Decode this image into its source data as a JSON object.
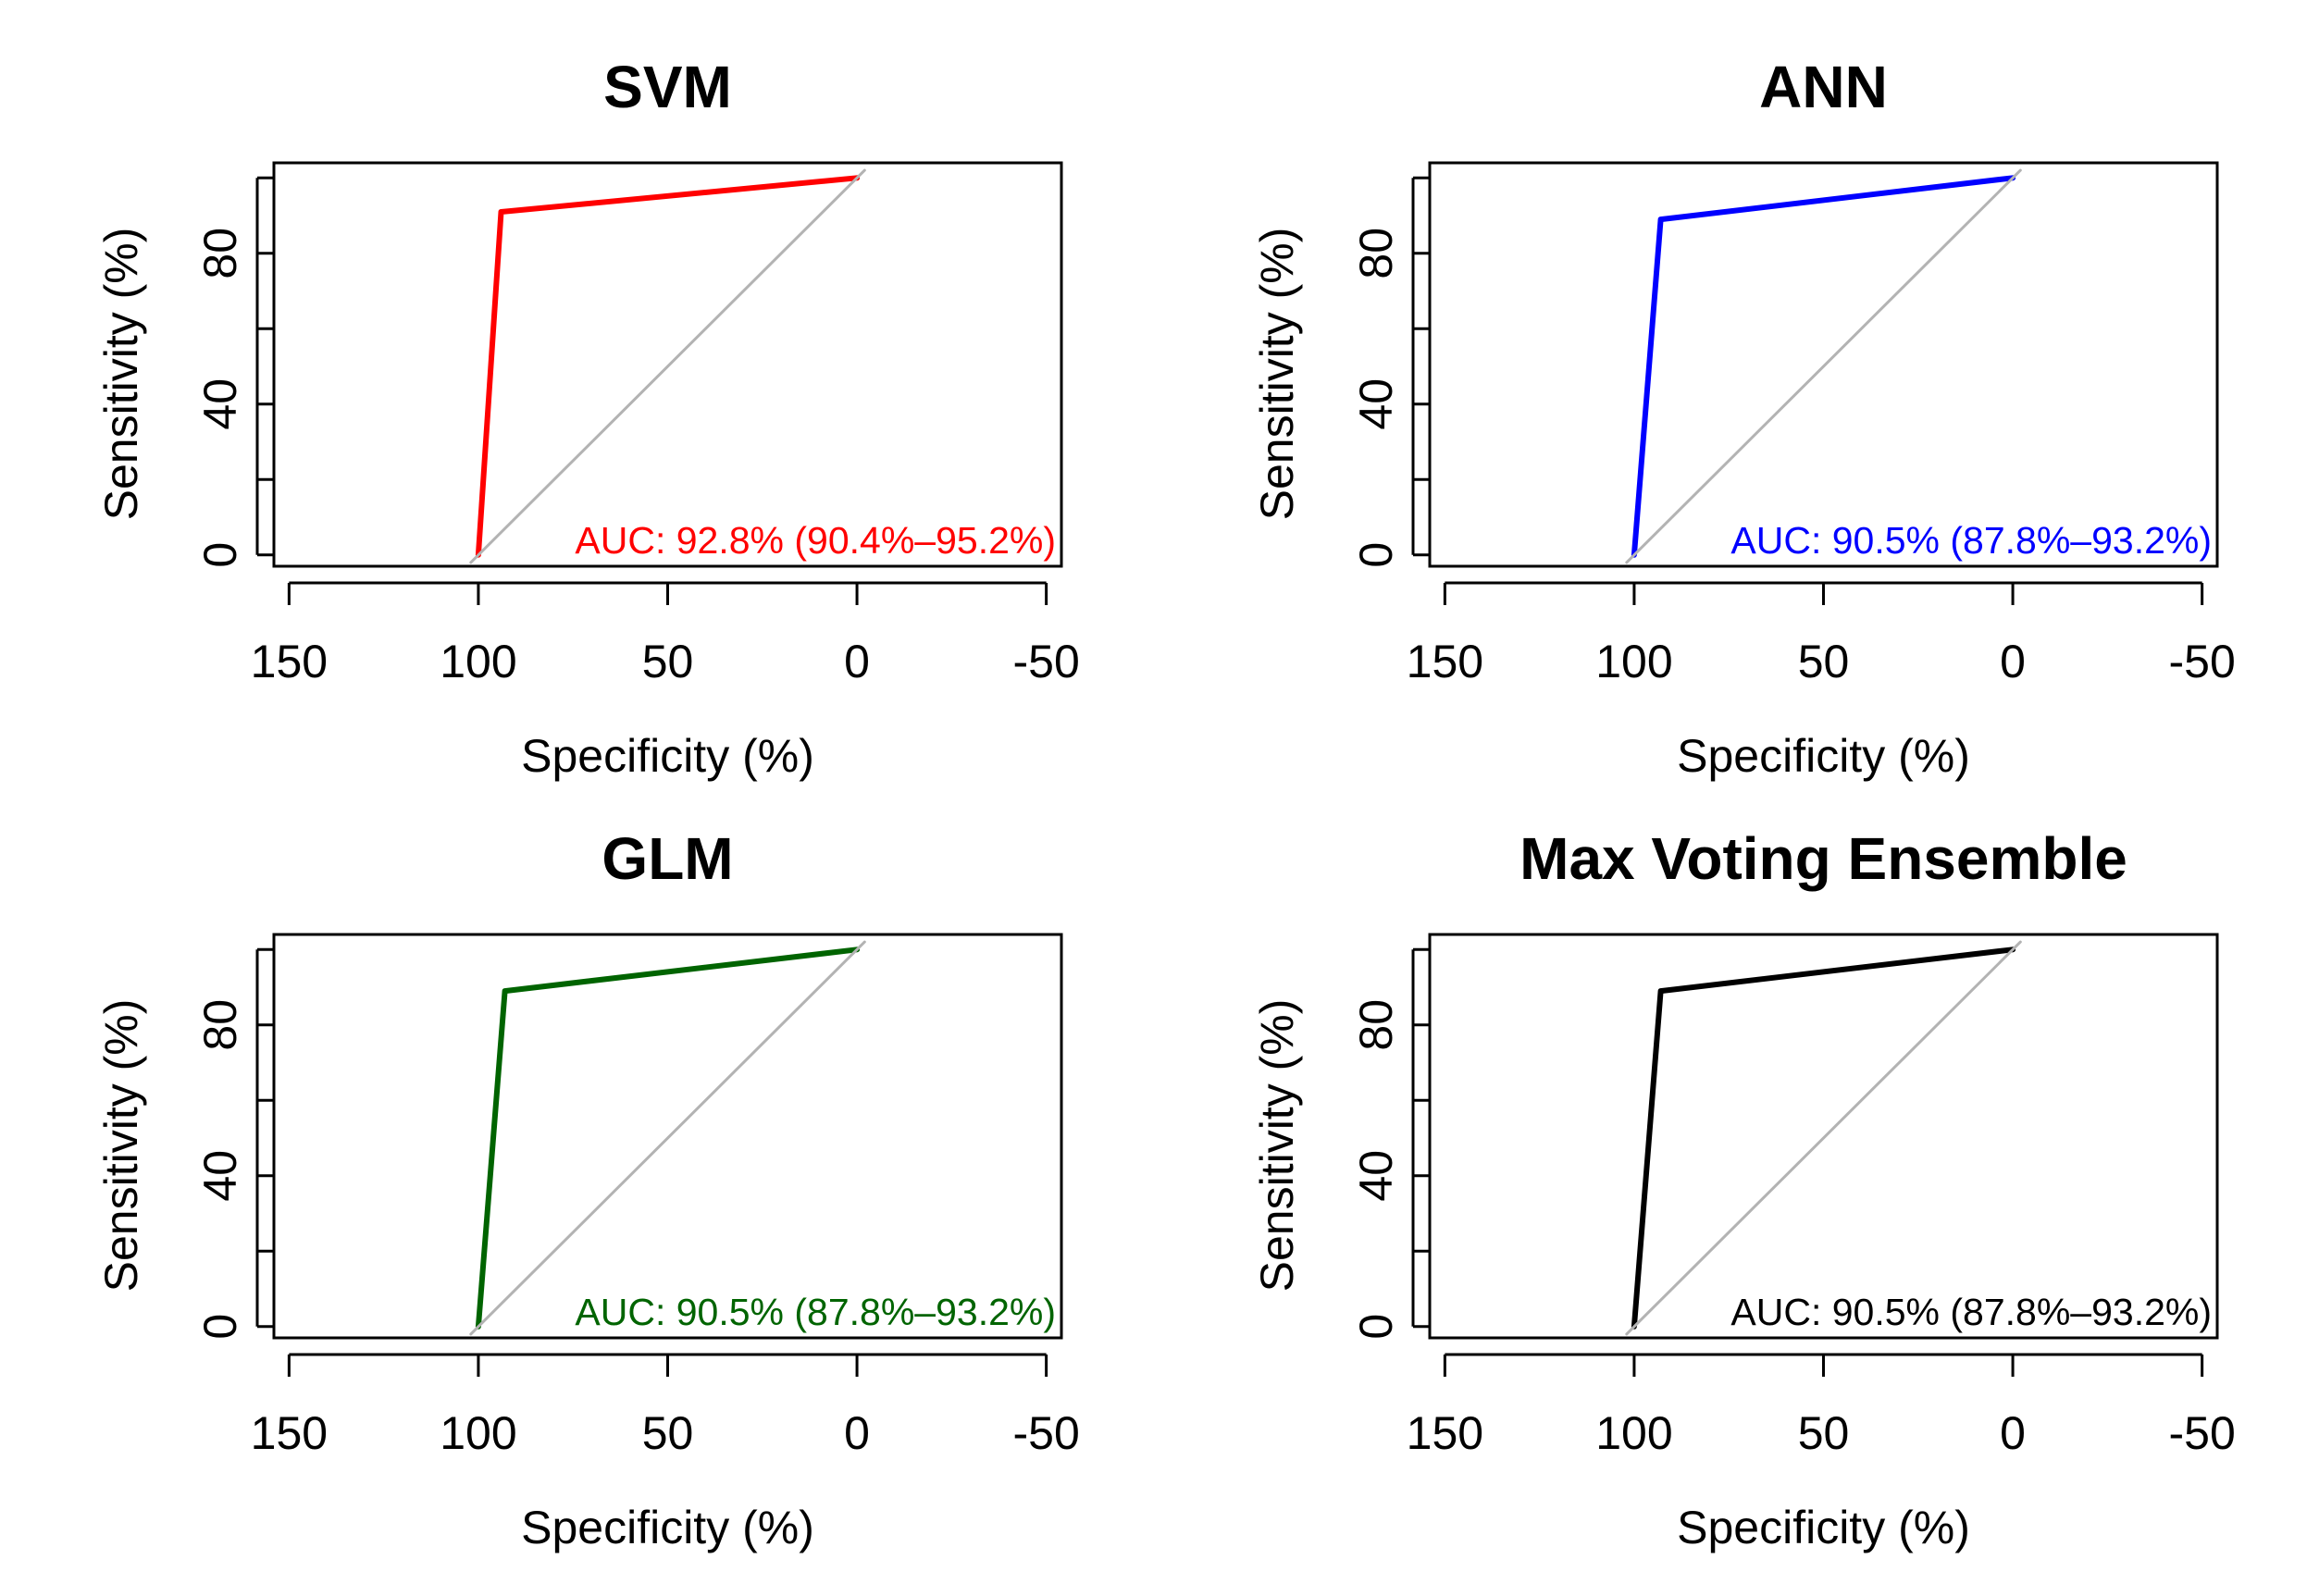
{
  "chart_data": [
    {
      "type": "line",
      "title": "SVM",
      "xlabel": "Specificity (%)",
      "ylabel": "Sensitivity (%)",
      "xlim": [
        154,
        -54
      ],
      "ylim": [
        -3,
        104
      ],
      "x_ticks": [
        150,
        100,
        50,
        0,
        -50
      ],
      "x_tick_labels": [
        "150",
        "100",
        "50",
        "0",
        "-50"
      ],
      "y_ticks": [
        0,
        20,
        40,
        60,
        80,
        100
      ],
      "y_tick_labels": [
        "0",
        "",
        "40",
        "",
        "80",
        ""
      ],
      "color": "#ff0000",
      "series": [
        {
          "name": "ROC",
          "x": [
            100,
            100,
            94,
            0
          ],
          "y": [
            0,
            0,
            91,
            100
          ]
        },
        {
          "name": "reference",
          "x": [
            102,
            -2
          ],
          "y": [
            -2,
            102
          ]
        }
      ],
      "annotation": "AUC: 92.8% (90.4%–95.2%)"
    },
    {
      "type": "line",
      "title": "ANN",
      "xlabel": "Specificity (%)",
      "ylabel": "Sensitivity (%)",
      "xlim": [
        154,
        -54
      ],
      "ylim": [
        -3,
        104
      ],
      "x_ticks": [
        150,
        100,
        50,
        0,
        -50
      ],
      "x_tick_labels": [
        "150",
        "100",
        "50",
        "0",
        "-50"
      ],
      "y_ticks": [
        0,
        20,
        40,
        60,
        80,
        100
      ],
      "y_tick_labels": [
        "0",
        "",
        "40",
        "",
        "80",
        ""
      ],
      "color": "#0000ff",
      "series": [
        {
          "name": "ROC",
          "x": [
            100,
            100,
            93,
            0
          ],
          "y": [
            0,
            0,
            89,
            100
          ]
        },
        {
          "name": "reference",
          "x": [
            102,
            -2
          ],
          "y": [
            -2,
            102
          ]
        }
      ],
      "annotation": "AUC: 90.5% (87.8%–93.2%)"
    },
    {
      "type": "line",
      "title": "GLM",
      "xlabel": "Specificity (%)",
      "ylabel": "Sensitivity (%)",
      "xlim": [
        154,
        -54
      ],
      "ylim": [
        -3,
        104
      ],
      "x_ticks": [
        150,
        100,
        50,
        0,
        -50
      ],
      "x_tick_labels": [
        "150",
        "100",
        "50",
        "0",
        "-50"
      ],
      "y_ticks": [
        0,
        20,
        40,
        60,
        80,
        100
      ],
      "y_tick_labels": [
        "0",
        "",
        "40",
        "",
        "80",
        ""
      ],
      "color": "#006400",
      "series": [
        {
          "name": "ROC",
          "x": [
            100,
            100,
            93,
            0
          ],
          "y": [
            0,
            0,
            89,
            100
          ]
        },
        {
          "name": "reference",
          "x": [
            102,
            -2
          ],
          "y": [
            -2,
            102
          ]
        }
      ],
      "annotation": "AUC: 90.5% (87.8%–93.2%)"
    },
    {
      "type": "line",
      "title": "Max Voting Ensemble",
      "xlabel": "Specificity (%)",
      "ylabel": "Sensitivity (%)",
      "xlim": [
        154,
        -54
      ],
      "ylim": [
        -3,
        104
      ],
      "x_ticks": [
        150,
        100,
        50,
        0,
        -50
      ],
      "x_tick_labels": [
        "150",
        "100",
        "50",
        "0",
        "-50"
      ],
      "y_ticks": [
        0,
        20,
        40,
        60,
        80,
        100
      ],
      "y_tick_labels": [
        "0",
        "",
        "40",
        "",
        "80",
        ""
      ],
      "color": "#000000",
      "series": [
        {
          "name": "ROC",
          "x": [
            100,
            100,
            93,
            0
          ],
          "y": [
            0,
            0,
            89,
            100
          ]
        },
        {
          "name": "reference",
          "x": [
            102,
            -2
          ],
          "y": [
            -2,
            102
          ]
        }
      ],
      "annotation": "AUC: 90.5% (87.8%–93.2%)"
    }
  ]
}
